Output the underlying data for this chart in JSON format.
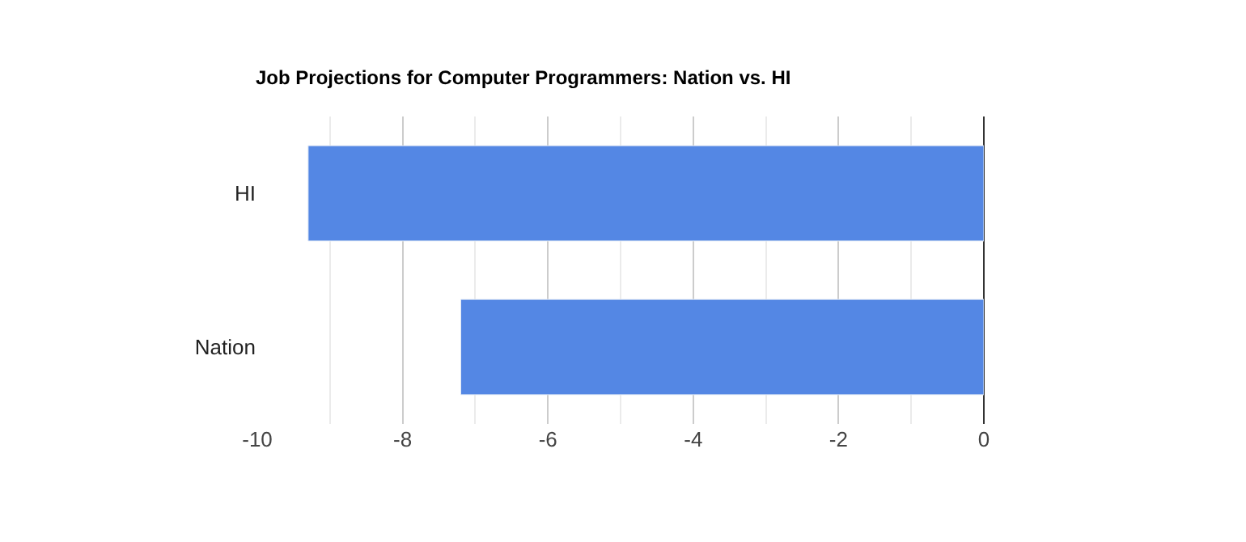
{
  "chart_data": {
    "type": "bar",
    "orientation": "horizontal",
    "title": "Job Projections for Computer Programmers: Nation vs. HI",
    "categories": [
      "HI",
      "Nation"
    ],
    "values": [
      -9.3,
      -7.2
    ],
    "color": "#5487e4",
    "xlim": [
      -10,
      0
    ],
    "xticks": [
      -10,
      {
        "value": -9,
        "label": null
      },
      -8,
      {
        "value": -7,
        "label": null
      },
      -6,
      {
        "value": -5,
        "label": null
      },
      -4,
      {
        "value": -3,
        "label": null
      },
      -2,
      {
        "value": -1,
        "label": null
      },
      0
    ],
    "grid": "x"
  }
}
